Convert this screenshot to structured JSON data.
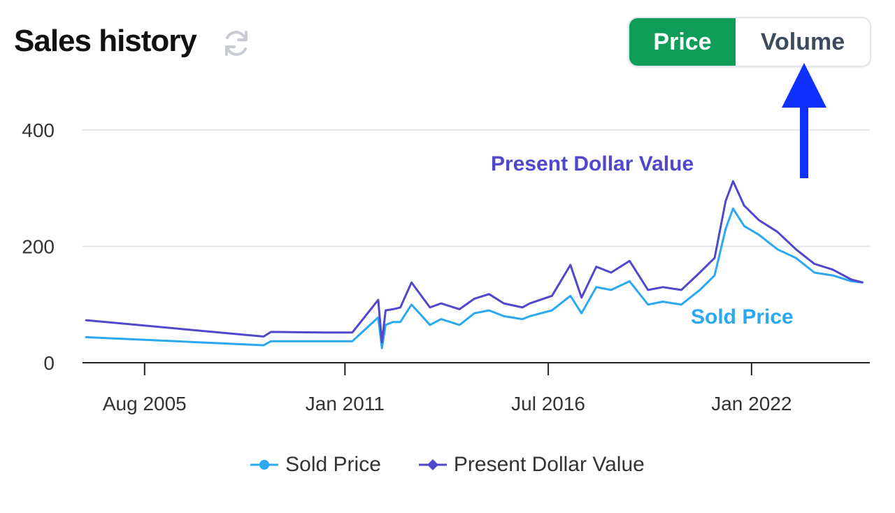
{
  "header": {
    "title": "Sales history",
    "refresh_icon": "refresh-icon"
  },
  "toggle": {
    "price_label": "Price",
    "volume_label": "Volume",
    "active": "Price",
    "active_color": "#0f9d58"
  },
  "annotations": {
    "arrow_color": "#1030ff",
    "present_label": "Present Dollar Value",
    "sold_label": "Sold Price"
  },
  "legend": {
    "sold_label": "Sold Price",
    "present_label": "Present Dollar Value"
  },
  "chart_data": {
    "type": "line",
    "title": "Sales history",
    "xlabel": "",
    "ylabel": "",
    "ylim": [
      0,
      400
    ],
    "yticks": [
      0,
      200,
      400
    ],
    "xticks": [
      "Aug 2005",
      "Jan 2011",
      "Jul 2016",
      "Jan 2022"
    ],
    "xtick_years": [
      2005.58,
      2011.0,
      2016.5,
      2022.0
    ],
    "grid": true,
    "legend_position": "bottom-center",
    "series": [
      {
        "name": "Sold Price",
        "color": "#2aa8f2",
        "marker": "circle",
        "x": [
          2004.0,
          2008.8,
          2009.0,
          2010.4,
          2011.2,
          2011.9,
          2012.0,
          2012.1,
          2012.3,
          2012.5,
          2012.8,
          2013.3,
          2013.6,
          2014.1,
          2014.5,
          2014.9,
          2015.3,
          2015.8,
          2016.0,
          2016.6,
          2017.1,
          2017.4,
          2017.8,
          2018.2,
          2018.7,
          2019.2,
          2019.6,
          2020.1,
          2020.6,
          2021.0,
          2021.3,
          2021.5,
          2021.8,
          2022.2,
          2022.7,
          2023.2,
          2023.7,
          2024.2,
          2024.7,
          2025.0
        ],
        "y": [
          44,
          30,
          37,
          37,
          37,
          78,
          25,
          65,
          70,
          70,
          100,
          65,
          75,
          65,
          85,
          90,
          80,
          75,
          80,
          90,
          115,
          85,
          130,
          125,
          140,
          100,
          105,
          100,
          125,
          150,
          230,
          265,
          235,
          220,
          195,
          180,
          155,
          150,
          140,
          138
        ]
      },
      {
        "name": "Present Dollar Value",
        "color": "#5147cc",
        "marker": "diamond",
        "x": [
          2004.0,
          2008.8,
          2009.0,
          2010.4,
          2011.2,
          2011.9,
          2012.0,
          2012.1,
          2012.3,
          2012.5,
          2012.8,
          2013.3,
          2013.6,
          2014.1,
          2014.5,
          2014.9,
          2015.3,
          2015.8,
          2016.0,
          2016.6,
          2017.1,
          2017.4,
          2017.8,
          2018.2,
          2018.7,
          2019.2,
          2019.6,
          2020.1,
          2020.6,
          2021.0,
          2021.3,
          2021.5,
          2021.8,
          2022.2,
          2022.7,
          2023.2,
          2023.7,
          2024.2,
          2024.7,
          2025.0
        ],
        "y": [
          73,
          45,
          53,
          52,
          52,
          108,
          35,
          90,
          92,
          95,
          138,
          95,
          102,
          92,
          110,
          118,
          102,
          95,
          102,
          115,
          168,
          112,
          165,
          155,
          175,
          125,
          130,
          125,
          155,
          180,
          278,
          312,
          270,
          245,
          225,
          195,
          170,
          160,
          143,
          138
        ]
      }
    ]
  }
}
